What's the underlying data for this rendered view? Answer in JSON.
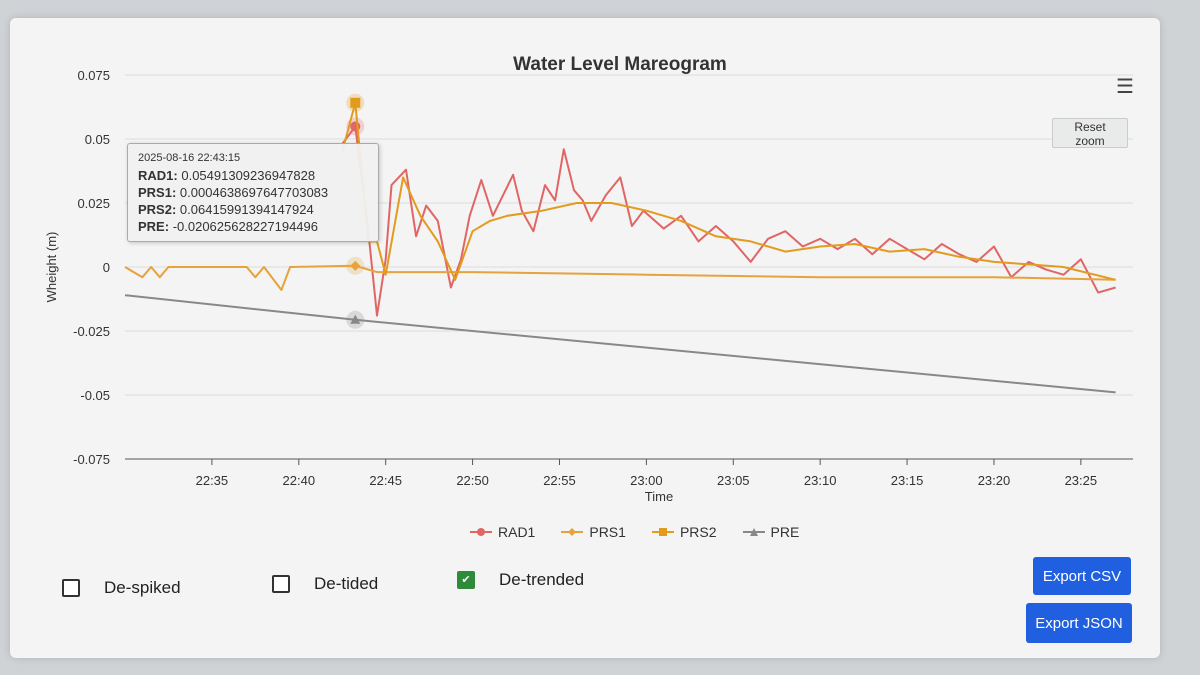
{
  "chart_data": {
    "type": "line",
    "title": "Water Level Mareogram",
    "xlabel": "Time",
    "ylabel": "Wheight (m)",
    "xlim": [
      "22:30:00",
      "23:28:00"
    ],
    "ylim": [
      -0.075,
      0.075
    ],
    "yticks": [
      "0.075",
      "0.05",
      "0.025",
      "0",
      "-0.025",
      "-0.05",
      "-0.075"
    ],
    "xticks": [
      "22:35",
      "22:40",
      "22:45",
      "22:50",
      "22:55",
      "23:00",
      "23:05",
      "23:10",
      "23:15",
      "23:20",
      "23:25"
    ],
    "grid": true,
    "legend_position": "bottom",
    "series": [
      {
        "name": "RAD1",
        "color": "#e06666",
        "marker": "circle",
        "points": [
          [
            "22:42:30",
            0.048
          ],
          [
            "22:43:15",
            0.05491309236947828
          ],
          [
            "22:44:00",
            0.014
          ],
          [
            "22:44:30",
            -0.019
          ],
          [
            "22:45:00",
            0.003
          ],
          [
            "22:45:20",
            0.032
          ],
          [
            "22:46:10",
            0.038
          ],
          [
            "22:46:45",
            0.012
          ],
          [
            "22:47:20",
            0.024
          ],
          [
            "22:48:00",
            0.018
          ],
          [
            "22:48:45",
            -0.008
          ],
          [
            "22:49:20",
            0.003
          ],
          [
            "22:49:50",
            0.02
          ],
          [
            "22:50:30",
            0.034
          ],
          [
            "22:51:10",
            0.02
          ],
          [
            "22:51:45",
            0.028
          ],
          [
            "22:52:20",
            0.036
          ],
          [
            "22:52:50",
            0.022
          ],
          [
            "22:53:30",
            0.014
          ],
          [
            "22:54:10",
            0.032
          ],
          [
            "22:54:45",
            0.026
          ],
          [
            "22:55:15",
            0.046
          ],
          [
            "22:55:50",
            0.03
          ],
          [
            "22:56:20",
            0.026
          ],
          [
            "22:56:50",
            0.018
          ],
          [
            "22:57:40",
            0.028
          ],
          [
            "22:58:30",
            0.035
          ],
          [
            "22:59:10",
            0.016
          ],
          [
            "22:59:50",
            0.022
          ],
          [
            "23:01:00",
            0.015
          ],
          [
            "23:02:00",
            0.02
          ],
          [
            "23:03:00",
            0.01
          ],
          [
            "23:04:00",
            0.016
          ],
          [
            "23:05:00",
            0.01
          ],
          [
            "23:06:00",
            0.002
          ],
          [
            "23:07:00",
            0.011
          ],
          [
            "23:08:00",
            0.014
          ],
          [
            "23:09:00",
            0.008
          ],
          [
            "23:10:00",
            0.011
          ],
          [
            "23:11:00",
            0.007
          ],
          [
            "23:12:00",
            0.011
          ],
          [
            "23:13:00",
            0.005
          ],
          [
            "23:14:00",
            0.011
          ],
          [
            "23:15:00",
            0.007
          ],
          [
            "23:16:00",
            0.003
          ],
          [
            "23:17:00",
            0.009
          ],
          [
            "23:18:00",
            0.005
          ],
          [
            "23:19:00",
            0.002
          ],
          [
            "23:20:00",
            0.008
          ],
          [
            "23:21:00",
            -0.004
          ],
          [
            "23:22:00",
            0.002
          ],
          [
            "23:23:00",
            -0.001
          ],
          [
            "23:24:00",
            -0.003
          ],
          [
            "23:25:00",
            0.003
          ],
          [
            "23:26:00",
            -0.01
          ],
          [
            "23:27:00",
            -0.008
          ]
        ]
      },
      {
        "name": "PRS1",
        "color": "#e6a23c",
        "marker": "diamond",
        "points": [
          [
            "22:30:00",
            0
          ],
          [
            "22:31:00",
            -0.004
          ],
          [
            "22:31:30",
            0
          ],
          [
            "22:32:00",
            -0.004
          ],
          [
            "22:32:30",
            0
          ],
          [
            "22:37:00",
            0
          ],
          [
            "22:37:30",
            -0.004
          ],
          [
            "22:38:00",
            0
          ],
          [
            "22:39:00",
            -0.009
          ],
          [
            "22:39:30",
            0
          ],
          [
            "22:43:15",
            0.0004638697647703083
          ],
          [
            "22:44:30",
            -0.002
          ],
          [
            "22:50:00",
            -0.002
          ],
          [
            "23:00:00",
            -0.003
          ],
          [
            "23:10:00",
            -0.004
          ],
          [
            "23:20:00",
            -0.004
          ],
          [
            "23:27:00",
            -0.005
          ]
        ]
      },
      {
        "name": "PRS2",
        "color": "#e39b1e",
        "marker": "square",
        "points": [
          [
            "22:42:30",
            0.045
          ],
          [
            "22:43:15",
            0.06415991394147924
          ],
          [
            "22:44:00",
            0.01
          ],
          [
            "22:44:30",
            0.01
          ],
          [
            "22:45:00",
            -0.003
          ],
          [
            "22:46:00",
            0.035
          ],
          [
            "22:47:00",
            0.02
          ],
          [
            "22:48:00",
            0.01
          ],
          [
            "22:49:00",
            -0.005
          ],
          [
            "22:50:00",
            0.014
          ],
          [
            "22:51:00",
            0.018
          ],
          [
            "22:52:00",
            0.02
          ],
          [
            "22:54:00",
            0.022
          ],
          [
            "22:56:00",
            0.025
          ],
          [
            "22:58:00",
            0.025
          ],
          [
            "23:00:00",
            0.022
          ],
          [
            "23:02:00",
            0.018
          ],
          [
            "23:04:00",
            0.012
          ],
          [
            "23:06:00",
            0.01
          ],
          [
            "23:08:00",
            0.006
          ],
          [
            "23:10:00",
            0.008
          ],
          [
            "23:12:00",
            0.009
          ],
          [
            "23:14:00",
            0.006
          ],
          [
            "23:16:00",
            0.007
          ],
          [
            "23:18:00",
            0.004
          ],
          [
            "23:20:00",
            0.002
          ],
          [
            "23:22:00",
            0.001
          ],
          [
            "23:24:00",
            0
          ],
          [
            "23:27:00",
            -0.005
          ]
        ]
      },
      {
        "name": "PRE",
        "color": "#888888",
        "marker": "triangle",
        "points": [
          [
            "22:30:00",
            -0.011
          ],
          [
            "22:43:15",
            -0.020625628227194496
          ],
          [
            "23:27:00",
            -0.049
          ]
        ]
      }
    ],
    "tooltip": {
      "time": "2025-08-16 22:43:15",
      "rows": [
        {
          "label": "RAD1:",
          "value": "0.05491309236947828"
        },
        {
          "label": "PRS1:",
          "value": "0.0004638697647703083"
        },
        {
          "label": "PRS2:",
          "value": "0.06415991394147924"
        },
        {
          "label": "PRE:",
          "value": "-0.020625628227194496"
        }
      ]
    }
  },
  "ui": {
    "reset_zoom": "Reset zoom",
    "menu_icon": "hamburger-menu-icon",
    "options": [
      {
        "label": "De-spiked",
        "checked": false
      },
      {
        "label": "De-tided",
        "checked": false
      },
      {
        "label": "De-trended",
        "checked": true
      }
    ],
    "export_csv": "Export CSV",
    "export_json": "Export JSON",
    "accent": "#1f5fe0"
  }
}
